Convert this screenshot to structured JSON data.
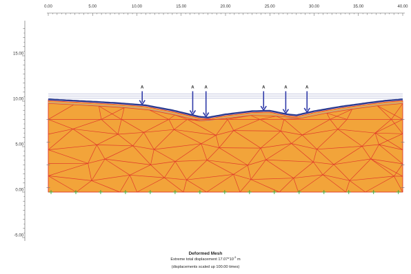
{
  "axes": {
    "x_ticks": [
      "0.00",
      "5.00",
      "10.00",
      "15.00",
      "20.00",
      "25.00",
      "30.00",
      "35.00",
      "40.00"
    ],
    "y_ticks": [
      "15.00",
      "10.00",
      "5.00",
      "0.00",
      "-5.00"
    ]
  },
  "load_labels": [
    "A",
    "A",
    "A",
    "A",
    "A",
    "A"
  ],
  "caption": {
    "title": "Deformed Mesh",
    "displacement_prefix": "Extreme total displacement 17.07*10",
    "displacement_exponent": "-3",
    "displacement_unit": "m",
    "scale_note": "(displacements scaled up 100.00 times)"
  },
  "colors": {
    "soil": "#f2a43a",
    "mesh_lines": "#e0392b",
    "surface_line": "#2b3a8f",
    "load_arrows": "#2f3aa8",
    "fixity": "#3aa83a"
  }
}
